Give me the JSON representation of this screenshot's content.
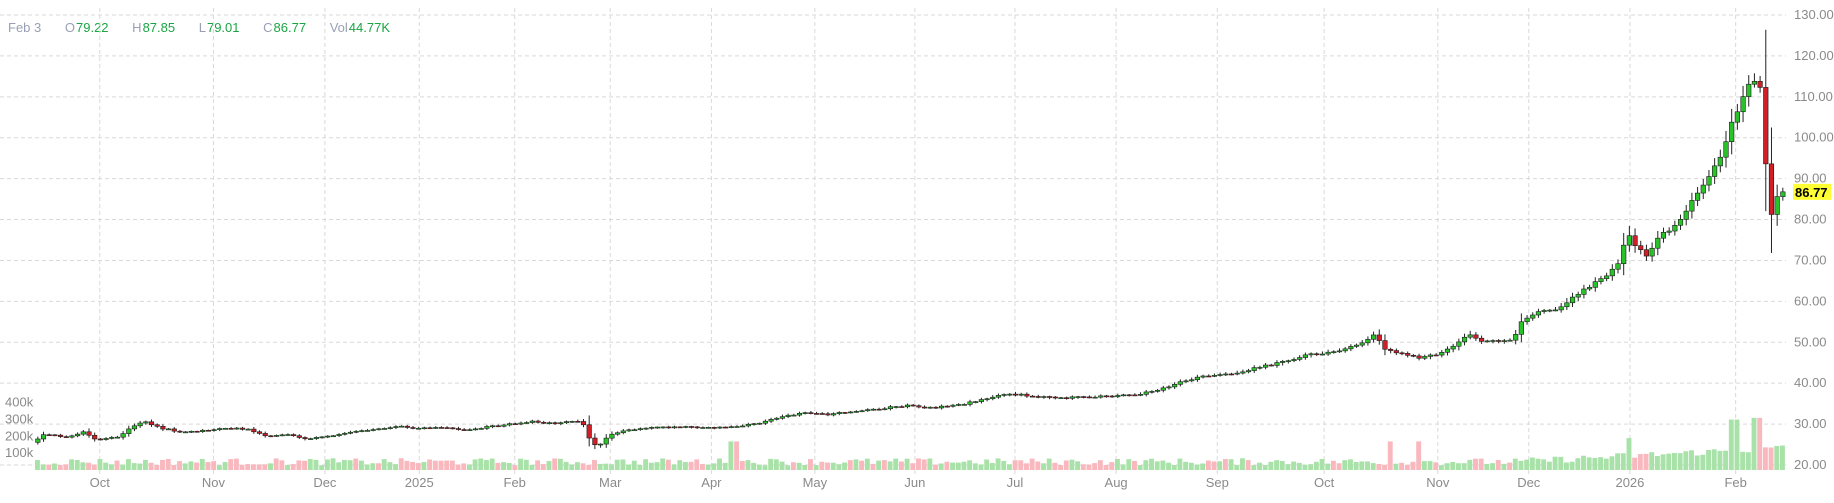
{
  "header": {
    "date": "Feb 3",
    "open_label": "O",
    "open": "79.22",
    "high_label": "H",
    "high": "87.85",
    "low_label": "L",
    "low": "79.01",
    "close_label": "C",
    "close": "86.77",
    "vol_label": "Vol",
    "volume": "44.77K"
  },
  "chart_data": {
    "type": "candlestick",
    "y_axis": {
      "ticks": [
        "20.00",
        "30.00",
        "40.00",
        "50.00",
        "60.00",
        "70.00",
        "80.00",
        "90.00",
        "100.00",
        "110.00",
        "120.00",
        "130.00"
      ],
      "range": [
        20,
        130
      ]
    },
    "volume_axis": {
      "ticks": [
        "100k",
        "200k",
        "300k",
        "400k"
      ],
      "range": [
        0,
        440000
      ]
    },
    "x_labels": [
      "Oct",
      "Nov",
      "Dec",
      "2025",
      "Feb",
      "Mar",
      "Apr",
      "May",
      "Jun",
      "Jul",
      "Aug",
      "Sep",
      "Oct",
      "Nov",
      "Dec",
      "2026",
      "Feb"
    ],
    "last_price": "86.77",
    "grid": true,
    "anchors": [
      [
        0,
        25.5
      ],
      [
        10,
        27.5
      ],
      [
        30,
        26.8
      ],
      [
        45,
        28.2
      ],
      [
        55,
        26.2
      ],
      [
        75,
        27.0
      ],
      [
        90,
        29.8
      ],
      [
        100,
        30.5
      ],
      [
        110,
        29.2
      ],
      [
        130,
        28.0
      ],
      [
        150,
        28.4
      ],
      [
        170,
        29.0
      ],
      [
        190,
        28.7
      ],
      [
        205,
        27.0
      ],
      [
        222,
        27.5
      ],
      [
        240,
        26.3
      ],
      [
        260,
        27.0
      ],
      [
        280,
        28.2
      ],
      [
        300,
        28.7
      ],
      [
        320,
        29.4
      ],
      [
        340,
        29.0
      ],
      [
        360,
        29.3
      ],
      [
        380,
        28.6
      ],
      [
        400,
        29.3
      ],
      [
        420,
        30.0
      ],
      [
        440,
        30.6
      ],
      [
        460,
        30.1
      ],
      [
        478,
        30.8
      ],
      [
        484,
        29.8
      ],
      [
        490,
        26.0
      ],
      [
        496,
        24.4
      ],
      [
        505,
        27.0
      ],
      [
        520,
        28.5
      ],
      [
        545,
        29.1
      ],
      [
        570,
        29.3
      ],
      [
        600,
        29.0
      ],
      [
        625,
        29.7
      ],
      [
        640,
        30.3
      ],
      [
        660,
        32.0
      ],
      [
        680,
        32.8
      ],
      [
        700,
        32.4
      ],
      [
        720,
        33.1
      ],
      [
        745,
        33.8
      ],
      [
        770,
        34.6
      ],
      [
        790,
        34.0
      ],
      [
        810,
        34.6
      ],
      [
        830,
        35.5
      ],
      [
        845,
        36.8
      ],
      [
        860,
        37.4
      ],
      [
        880,
        36.8
      ],
      [
        900,
        36.3
      ],
      [
        925,
        36.6
      ],
      [
        950,
        36.9
      ],
      [
        970,
        37.3
      ],
      [
        990,
        38.2
      ],
      [
        1010,
        40.5
      ],
      [
        1030,
        41.8
      ],
      [
        1060,
        42.6
      ],
      [
        1080,
        44.0
      ],
      [
        1100,
        45.2
      ],
      [
        1120,
        46.8
      ],
      [
        1140,
        47.6
      ],
      [
        1155,
        48.5
      ],
      [
        1170,
        50.1
      ],
      [
        1180,
        52.0
      ],
      [
        1190,
        48.0
      ],
      [
        1210,
        46.8
      ],
      [
        1222,
        46.2
      ],
      [
        1240,
        47.6
      ],
      [
        1250,
        49.0
      ],
      [
        1262,
        52.0
      ],
      [
        1272,
        50.5
      ],
      [
        1290,
        50.1
      ],
      [
        1303,
        51.0
      ],
      [
        1310,
        55.5
      ],
      [
        1325,
        57.5
      ],
      [
        1340,
        58.2
      ],
      [
        1355,
        61.0
      ],
      [
        1370,
        64.0
      ],
      [
        1385,
        66.5
      ],
      [
        1395,
        69.5
      ],
      [
        1402,
        76.5
      ],
      [
        1410,
        73.5
      ],
      [
        1420,
        71.0
      ],
      [
        1430,
        76.0
      ],
      [
        1440,
        77.5
      ],
      [
        1450,
        80.0
      ],
      [
        1460,
        85.0
      ],
      [
        1470,
        89.0
      ],
      [
        1478,
        92.5
      ],
      [
        1486,
        96.5
      ],
      [
        1495,
        104.5
      ],
      [
        1505,
        110.0
      ],
      [
        1512,
        115.0
      ],
      [
        1520,
        112.0
      ],
      [
        1527,
        79.0
      ],
      [
        1535,
        86.77
      ]
    ],
    "volume_spikes": [
      [
        612,
        170000
      ],
      [
        1190,
        170000
      ],
      [
        1215,
        170000
      ],
      [
        1400,
        190000
      ],
      [
        1493,
        300000
      ],
      [
        1513,
        310000
      ]
    ]
  }
}
